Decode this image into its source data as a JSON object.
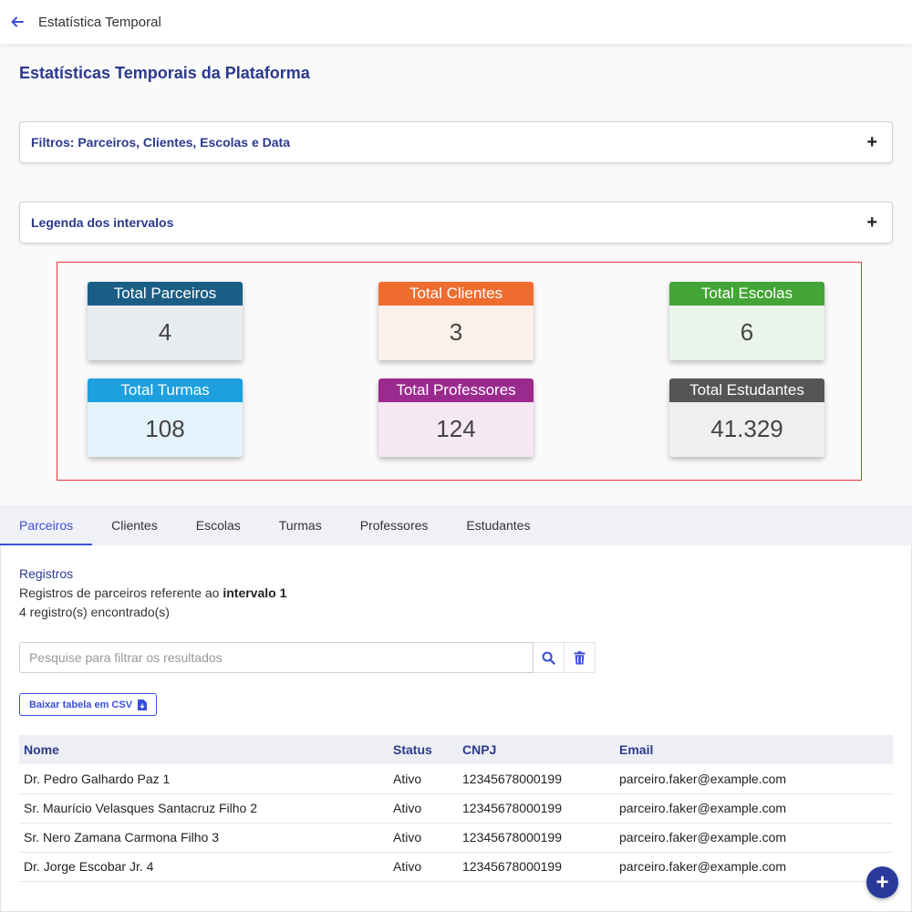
{
  "header": {
    "title": "Estatística Temporal"
  },
  "page": {
    "title": "Estatísticas Temporais da Plataforma"
  },
  "accordions": {
    "filters": "Filtros: Parceiros, Clientes, Escolas e Data",
    "legend": "Legenda dos intervalos",
    "expand_symbol": "+"
  },
  "stats": [
    {
      "label": "Total Parceiros",
      "value": "4",
      "header_color": "#1b5e85",
      "body_color": "#e8ecf0"
    },
    {
      "label": "Total Clientes",
      "value": "3",
      "header_color": "#ef6c2f",
      "body_color": "#fbf0ea"
    },
    {
      "label": "Total Escolas",
      "value": "6",
      "header_color": "#43a535",
      "body_color": "#ebf4ea"
    },
    {
      "label": "Total Turmas",
      "value": "108",
      "header_color": "#1ea0de",
      "body_color": "#e4f3fb"
    },
    {
      "label": "Total Professores",
      "value": "124",
      "header_color": "#9b2a8f",
      "body_color": "#f5e8f3"
    },
    {
      "label": "Total Estudantes",
      "value": "41.329",
      "header_color": "#555555",
      "body_color": "#efefef"
    }
  ],
  "tabs": [
    "Parceiros",
    "Clientes",
    "Escolas",
    "Turmas",
    "Professores",
    "Estudantes"
  ],
  "active_tab": "Parceiros",
  "records": {
    "title": "Registros",
    "description_prefix": "Registros de parceiros referente ao ",
    "description_bold": "intervalo 1",
    "count": "4 registro(s) encontrado(s)"
  },
  "search": {
    "placeholder": "Pesquise para filtrar os resultados",
    "value": ""
  },
  "csv_button": "Baixar tabela em CSV",
  "table": {
    "headers": [
      "Nome",
      "Status",
      "CNPJ",
      "Email"
    ],
    "rows": [
      [
        "Dr. Pedro Galhardo Paz 1",
        "Ativo",
        "12345678000199",
        "parceiro.faker@example.com"
      ],
      [
        "Sr. Maurício Velasques Santacruz Filho 2",
        "Ativo",
        "12345678000199",
        "parceiro.faker@example.com"
      ],
      [
        "Sr. Nero Zamana Carmona Filho 3",
        "Ativo",
        "12345678000199",
        "parceiro.faker@example.com"
      ],
      [
        "Dr. Jorge Escobar Jr. 4",
        "Ativo",
        "12345678000199",
        "parceiro.faker@example.com"
      ]
    ]
  },
  "fab": "+",
  "colors": {
    "accent": "#3a4fd6",
    "title": "#2b3a8f",
    "highlight_border": "#e53935",
    "fab": "#2a3a9a"
  },
  "icons": {
    "back": "arrow-left-icon",
    "search": "search-icon",
    "delete": "trash-icon",
    "csv": "file-download-icon"
  }
}
